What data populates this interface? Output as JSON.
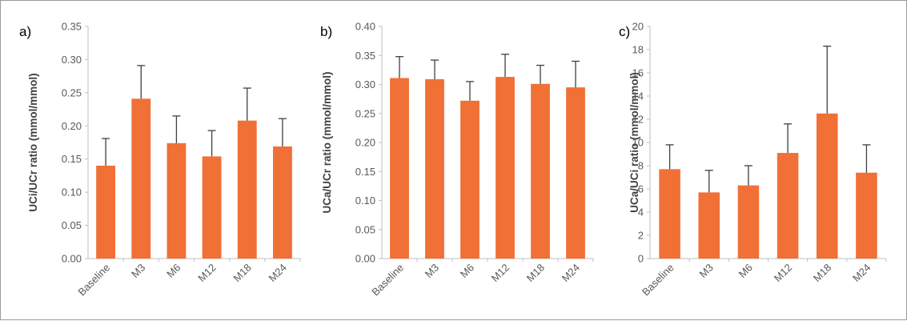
{
  "colors": {
    "bar": "#F07036",
    "error_bar": "#404040",
    "axis": "#bfbfbf",
    "tick_text": "#595959",
    "border": "#9a9a9a"
  },
  "chart_data": [
    {
      "panel": "a)",
      "type": "bar",
      "categories": [
        "Baseline",
        "M3",
        "M6",
        "M12",
        "M18",
        "M24"
      ],
      "values": [
        0.14,
        0.241,
        0.174,
        0.154,
        0.208,
        0.169
      ],
      "error_upper": [
        0.181,
        0.291,
        0.215,
        0.193,
        0.257,
        0.211
      ],
      "ylabel": "UCi/UCr ratio (mmol/mmol)",
      "ylim": [
        0,
        0.35
      ],
      "yticks": [
        "0.00",
        "0.05",
        "0.10",
        "0.15",
        "0.20",
        "0.25",
        "0.30",
        "0.35"
      ],
      "grid": false,
      "legend": "none"
    },
    {
      "panel": "b)",
      "type": "bar",
      "categories": [
        "Baseline",
        "M3",
        "M6",
        "M12",
        "M18",
        "M24"
      ],
      "values": [
        0.311,
        0.309,
        0.272,
        0.313,
        0.301,
        0.295
      ],
      "error_upper": [
        0.348,
        0.342,
        0.305,
        0.352,
        0.333,
        0.34
      ],
      "ylabel": "UCa/UCr ratio (mmol/mmol)",
      "ylim": [
        0,
        0.4
      ],
      "yticks": [
        "0.00",
        "0.05",
        "0.10",
        "0.15",
        "0.20",
        "0.25",
        "0.30",
        "0.35",
        "0.40"
      ],
      "grid": false,
      "legend": "none"
    },
    {
      "panel": "c)",
      "type": "bar",
      "categories": [
        "Baseline",
        "M3",
        "M6",
        "M12",
        "M18",
        "M24"
      ],
      "values": [
        7.7,
        5.7,
        6.3,
        9.1,
        12.5,
        7.4
      ],
      "error_upper": [
        9.8,
        7.6,
        8.0,
        11.6,
        18.3,
        9.8
      ],
      "ylabel": "UCa/UCi ratio (mmol/mmol)",
      "ylim": [
        0,
        20
      ],
      "yticks": [
        "0",
        "2",
        "4",
        "6",
        "8",
        "10",
        "12",
        "14",
        "16",
        "18",
        "20"
      ],
      "grid": false,
      "legend": "none"
    }
  ]
}
